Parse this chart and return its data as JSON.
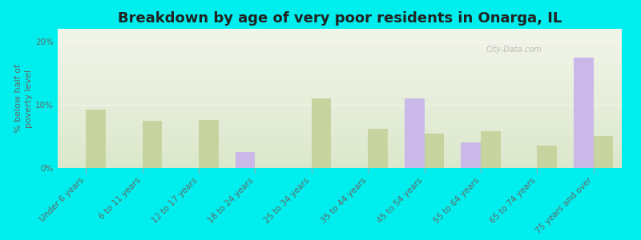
{
  "title": "Breakdown by age of very poor residents in Onarga, IL",
  "ylabel": "% below half of\npoverty level",
  "categories": [
    "Under 6 years",
    "6 to 11 years",
    "12 to 17 years",
    "18 to 24 years",
    "25 to 34 years",
    "35 to 44 years",
    "45 to 54 years",
    "55 to 64 years",
    "65 to 74 years",
    "75 years and over"
  ],
  "onarga_values": [
    0,
    0,
    0,
    2.5,
    0,
    0,
    11.0,
    4.0,
    0,
    17.5
  ],
  "illinois_values": [
    9.2,
    7.5,
    7.6,
    0,
    11.0,
    6.2,
    5.5,
    5.8,
    3.5,
    5.0
  ],
  "onarga_color": "#c9b8e8",
  "illinois_color": "#c8d4a0",
  "background_color": "#00eeee",
  "plot_bg_color1": "#dce8cc",
  "plot_bg_color2": "#f2f5ea",
  "ylim": [
    0,
    22
  ],
  "yticks": [
    0,
    10,
    20
  ],
  "ytick_labels": [
    "0%",
    "10%",
    "20%"
  ],
  "bar_width": 0.35,
  "title_fontsize": 13,
  "tick_label_fontsize": 7.5,
  "axis_label_fontsize": 8,
  "legend_fontsize": 9,
  "watermark": "City-Data.com"
}
